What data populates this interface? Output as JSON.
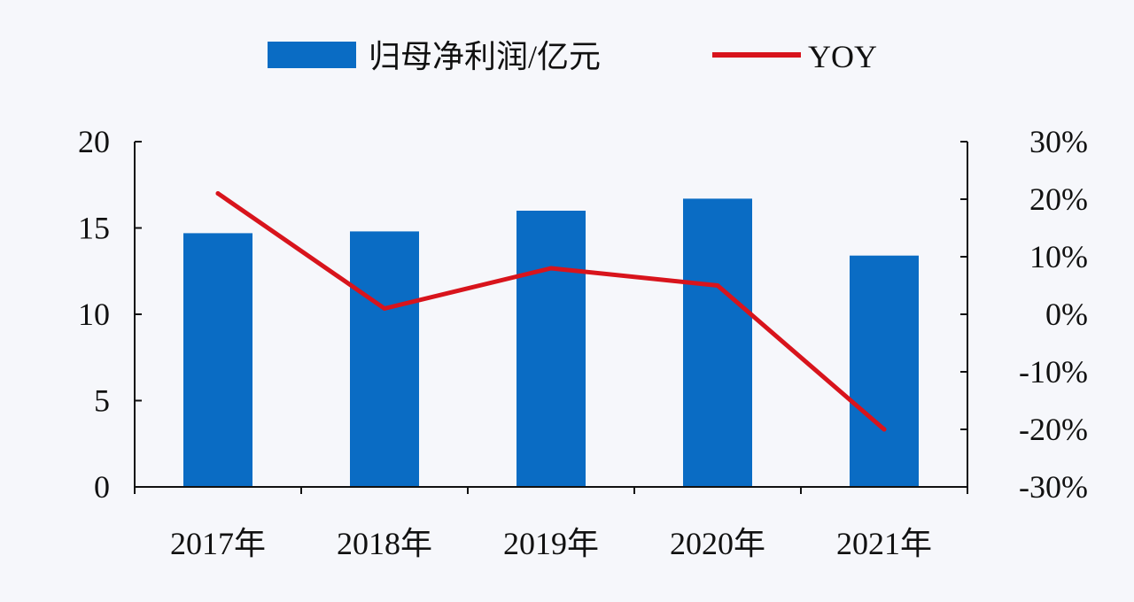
{
  "chart_data": {
    "type": "bar",
    "categories": [
      "2017年",
      "2018年",
      "2019年",
      "2020年",
      "2021年"
    ],
    "series": [
      {
        "name": "归母净利润/亿元",
        "type": "bar",
        "axis": "left",
        "values": [
          14.7,
          14.8,
          16.0,
          16.7,
          13.4
        ]
      },
      {
        "name": "YOY",
        "type": "line",
        "axis": "right",
        "values": [
          21,
          1,
          8,
          5,
          -20
        ]
      }
    ],
    "left_axis": {
      "ylim": [
        0,
        20
      ],
      "ticks": [
        0,
        5,
        10,
        15,
        20
      ],
      "tick_labels": [
        "0",
        "5",
        "10",
        "15",
        "20"
      ]
    },
    "right_axis": {
      "ylim": [
        -30,
        30
      ],
      "ticks": [
        -30,
        -20,
        -10,
        0,
        10,
        20,
        30
      ],
      "tick_labels": [
        "-30%",
        "-20%",
        "-10%",
        "0%",
        "10%",
        "20%",
        "30%"
      ]
    },
    "legend_position": "top",
    "grid": false,
    "colors": {
      "bar": "#0a6cc4",
      "line": "#d8141c",
      "axis": "#111111",
      "background": "#f6f7fb"
    }
  }
}
